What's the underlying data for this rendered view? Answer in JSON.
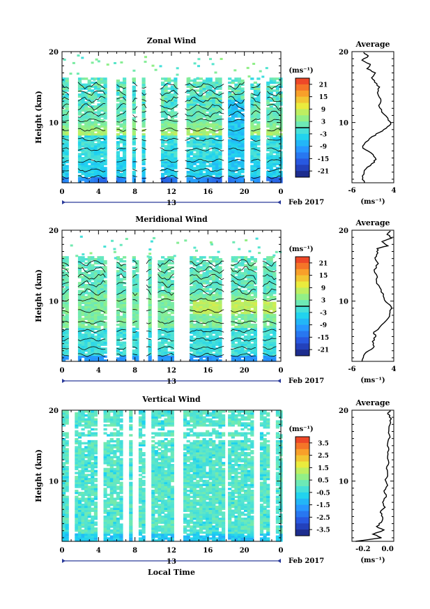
{
  "figure": {
    "xlabel": "Local Time",
    "date_label": "Feb 2017",
    "day_label": "13",
    "ylabel": "Height (km)",
    "unit_label": "(ms⁻¹)",
    "avg_title": "Average",
    "avg_unit": "(ms⁻¹)"
  },
  "chart_data": [
    {
      "type": "heatmap",
      "title": "Zonal Wind",
      "xlabel": "Local Time",
      "ylabel": "Height (km)",
      "x_ticks": [
        "0",
        "4",
        "8",
        "12",
        "16",
        "20",
        "0"
      ],
      "xlim": [
        0,
        24
      ],
      "ylim": [
        1.5,
        20
      ],
      "y_ticks": [
        "20",
        "10"
      ],
      "colorbar": {
        "unit": "(ms⁻¹)",
        "range": [
          -24,
          24
        ],
        "tick_labels": [
          "21",
          "15",
          "9",
          "3",
          "-3",
          "-9",
          "-15",
          "-21"
        ],
        "tick_values": [
          21,
          15,
          9,
          3,
          -3,
          -9,
          -15,
          -21
        ],
        "zero_line": 0
      },
      "average_profile": {
        "title": "Average",
        "xlabel": "(ms⁻¹)",
        "x_ticks": [
          "-6",
          "4"
        ],
        "xlim": [
          -6,
          4
        ],
        "y_ticks": [
          "20",
          "10"
        ],
        "points": [
          [
            -3.0,
            1.5
          ],
          [
            -3.4,
            2.2
          ],
          [
            -3.1,
            3.0
          ],
          [
            -2.3,
            3.7
          ],
          [
            -0.6,
            4.4
          ],
          [
            -0.4,
            5.0
          ],
          [
            -1.4,
            5.7
          ],
          [
            -3.4,
            6.4
          ],
          [
            -2.8,
            7.2
          ],
          [
            -1.2,
            8.0
          ],
          [
            0.6,
            8.6
          ],
          [
            2.2,
            9.2
          ],
          [
            3.3,
            9.8
          ],
          [
            2.6,
            10.6
          ],
          [
            1.1,
            11.5
          ],
          [
            0.4,
            12.4
          ],
          [
            0.9,
            13.3
          ],
          [
            0.1,
            14.2
          ],
          [
            0.6,
            15.0
          ],
          [
            -0.6,
            15.7
          ],
          [
            -1.3,
            16.3
          ],
          [
            -0.4,
            17.0
          ],
          [
            -2.4,
            17.6
          ],
          [
            -1.6,
            18.2
          ],
          [
            -3.6,
            18.8
          ],
          [
            -2.1,
            19.4
          ],
          [
            -3.2,
            19.9
          ]
        ]
      }
    },
    {
      "type": "heatmap",
      "title": "Meridional Wind",
      "xlabel": "Local Time",
      "ylabel": "Height (km)",
      "x_ticks": [
        "0",
        "4",
        "8",
        "12",
        "16",
        "20",
        "0"
      ],
      "xlim": [
        0,
        24
      ],
      "ylim": [
        1.5,
        20
      ],
      "y_ticks": [
        "20",
        "10"
      ],
      "colorbar": {
        "unit": "(ms⁻¹)",
        "range": [
          -24,
          24
        ],
        "tick_labels": [
          "21",
          "15",
          "9",
          "3",
          "-3",
          "-9",
          "-15",
          "-21"
        ],
        "tick_values": [
          21,
          15,
          9,
          3,
          -3,
          -9,
          -15,
          -21
        ],
        "zero_line": 0
      },
      "average_profile": {
        "title": "Average",
        "xlabel": "(ms⁻¹)",
        "x_ticks": [
          "-6",
          "4"
        ],
        "xlim": [
          -6,
          4
        ],
        "y_ticks": [
          "20",
          "10"
        ],
        "points": [
          [
            -3.6,
            1.5
          ],
          [
            -3.2,
            2.3
          ],
          [
            -2.0,
            3.0
          ],
          [
            -0.7,
            3.6
          ],
          [
            -1.1,
            4.3
          ],
          [
            -0.3,
            5.0
          ],
          [
            -0.8,
            5.6
          ],
          [
            0.5,
            6.2
          ],
          [
            1.6,
            6.9
          ],
          [
            2.7,
            7.6
          ],
          [
            3.1,
            8.4
          ],
          [
            3.4,
            9.2
          ],
          [
            2.1,
            9.9
          ],
          [
            1.5,
            10.7
          ],
          [
            1.0,
            11.6
          ],
          [
            -0.1,
            12.5
          ],
          [
            0.1,
            13.4
          ],
          [
            -0.7,
            14.4
          ],
          [
            0.3,
            15.3
          ],
          [
            -0.5,
            16.1
          ],
          [
            0.2,
            16.8
          ],
          [
            0.0,
            17.4
          ],
          [
            2.6,
            17.8
          ],
          [
            1.2,
            18.4
          ],
          [
            3.5,
            18.9
          ],
          [
            2.4,
            19.4
          ],
          [
            3.2,
            19.9
          ]
        ]
      }
    },
    {
      "type": "heatmap",
      "title": "Vertical Wind",
      "xlabel": "Local Time",
      "ylabel": "Height (km)",
      "x_ticks": [
        "0",
        "4",
        "8",
        "12",
        "16",
        "20",
        "0"
      ],
      "xlim": [
        0,
        24
      ],
      "ylim": [
        1.5,
        20
      ],
      "y_ticks": [
        "20",
        "10"
      ],
      "colorbar": {
        "unit": "(ms⁻¹)",
        "range": [
          -4,
          4
        ],
        "tick_labels": [
          "3.5",
          "2.5",
          "1.5",
          "0.5",
          "-0.5",
          "-1.5",
          "-2.5",
          "-3.5"
        ],
        "tick_values": [
          3.5,
          2.5,
          1.5,
          0.5,
          -0.5,
          -1.5,
          -2.5,
          -3.5
        ],
        "zero_line": null
      },
      "average_profile": {
        "title": "Average",
        "xlabel": "(ms⁻¹)",
        "x_ticks": [
          "-0.2",
          "0.0"
        ],
        "xlim": [
          -0.29,
          0.05
        ],
        "y_ticks": [
          "20",
          "10"
        ],
        "points": [
          [
            -0.26,
            1.5
          ],
          [
            -0.05,
            2.0
          ],
          [
            -0.12,
            2.5
          ],
          [
            -0.03,
            3.1
          ],
          [
            -0.09,
            3.6
          ],
          [
            -0.05,
            4.2
          ],
          [
            -0.04,
            4.9
          ],
          [
            -0.06,
            5.6
          ],
          [
            -0.02,
            6.3
          ],
          [
            -0.04,
            7.0
          ],
          [
            -0.01,
            7.8
          ],
          [
            -0.03,
            8.6
          ],
          [
            0.0,
            9.4
          ],
          [
            -0.02,
            10.2
          ],
          [
            0.0,
            11.0
          ],
          [
            -0.01,
            11.8
          ],
          [
            0.01,
            12.6
          ],
          [
            0.0,
            13.5
          ],
          [
            0.01,
            14.4
          ],
          [
            0.0,
            15.3
          ],
          [
            0.02,
            16.2
          ],
          [
            0.01,
            17.1
          ],
          [
            0.02,
            18.0
          ],
          [
            0.03,
            18.8
          ],
          [
            0.0,
            19.5
          ],
          [
            0.02,
            20.0
          ]
        ]
      }
    }
  ]
}
